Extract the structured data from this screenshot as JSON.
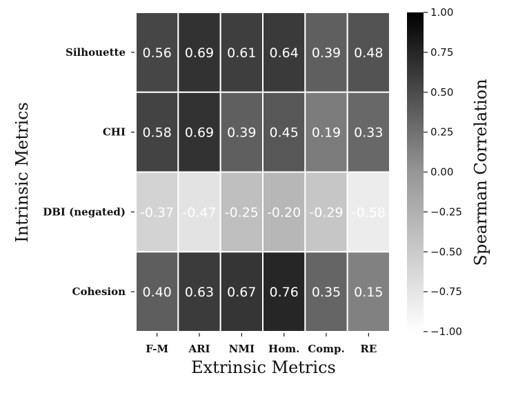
{
  "chart_data": {
    "type": "heatmap",
    "title": "",
    "xlabel": "Extrinsic Metrics",
    "ylabel": "Intrinsic Metrics",
    "x_categories": [
      "F-M",
      "ARI",
      "NMI",
      "Hom.",
      "Comp.",
      "RE"
    ],
    "y_categories": [
      "Silhouette",
      "CHI",
      "DBI (negated)",
      "Cohesion"
    ],
    "values": [
      [
        0.56,
        0.69,
        0.61,
        0.64,
        0.39,
        0.48
      ],
      [
        0.58,
        0.69,
        0.39,
        0.45,
        0.19,
        0.33
      ],
      [
        -0.37,
        -0.47,
        -0.25,
        -0.2,
        -0.29,
        -0.58
      ],
      [
        0.4,
        0.63,
        0.67,
        0.76,
        0.35,
        0.15
      ]
    ],
    "value_labels": [
      [
        "0.56",
        "0.69",
        "0.61",
        "0.64",
        "0.39",
        "0.48"
      ],
      [
        "0.58",
        "0.69",
        "0.39",
        "0.45",
        "0.19",
        "0.33"
      ],
      [
        "-0.37",
        "-0.47",
        "-0.25",
        "-0.20",
        "-0.29",
        "-0.58"
      ],
      [
        "0.40",
        "0.63",
        "0.67",
        "0.76",
        "0.35",
        "0.15"
      ]
    ],
    "colorbar": {
      "label": "Spearman Correlation",
      "range": [
        -1.0,
        1.0
      ],
      "ticks": [
        1.0,
        0.75,
        0.5,
        0.25,
        0.0,
        -0.25,
        -0.5,
        -0.75,
        -1.0
      ],
      "tick_labels": [
        "1.00",
        "0.75",
        "0.50",
        "0.25",
        "0.00",
        "−0.25",
        "−0.50",
        "−0.75",
        "−1.00"
      ],
      "colormap": "Greys"
    },
    "grid": false
  }
}
